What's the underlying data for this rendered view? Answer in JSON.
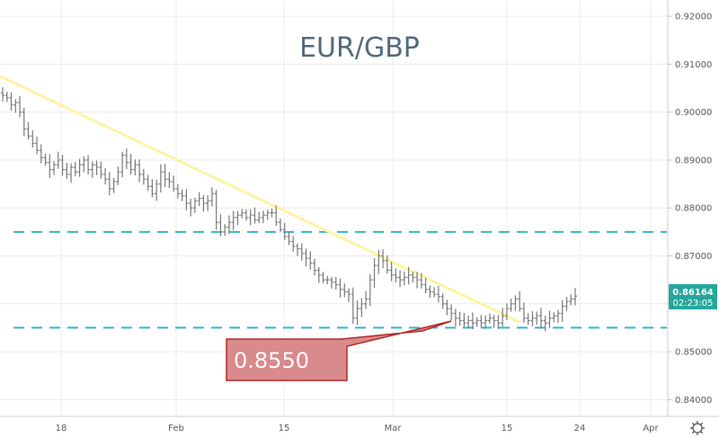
{
  "chart_data": {
    "type": "ohlc",
    "title": "EUR/GBP",
    "price_axis_position": "right",
    "ylim": [
      0.8365,
      0.9234
    ],
    "y_ticks": [
      "0.92000",
      "0.91000",
      "0.90000",
      "0.89000",
      "0.88000",
      "0.87000",
      "0.86000",
      "0.85000",
      "0.84000"
    ],
    "x_ticks": [
      "18",
      "Feb",
      "15",
      "Mar",
      "15",
      "24",
      "Apr"
    ],
    "last_price": "0.86164",
    "countdown": "02:23:05",
    "colors": {
      "bars": "#7a7a7a",
      "grid": "#ececec",
      "trendline": "#fff3a6",
      "support_resistance": "#35b6c9",
      "callout_fill": "#d98a8a",
      "callout_border": "#b52a2a",
      "badge": "#26a69a",
      "title": "#546a7b"
    },
    "horizontal_levels": [
      0.875,
      0.855
    ],
    "trendline": {
      "start": 0.9075,
      "end": 0.8562
    },
    "annotation": {
      "text": "0.8550",
      "points_to_price": 0.855
    },
    "close_series": [
      0.9035,
      0.903,
      0.9015,
      0.902,
      0.9,
      0.8965,
      0.895,
      0.8935,
      0.892,
      0.8905,
      0.8895,
      0.888,
      0.889,
      0.89,
      0.888,
      0.887,
      0.8885,
      0.8875,
      0.889,
      0.89,
      0.888,
      0.889,
      0.8885,
      0.887,
      0.886,
      0.884,
      0.8855,
      0.8875,
      0.891,
      0.8895,
      0.888,
      0.889,
      0.887,
      0.886,
      0.8845,
      0.883,
      0.885,
      0.8875,
      0.886,
      0.8855,
      0.884,
      0.883,
      0.8825,
      0.881,
      0.88,
      0.8815,
      0.882,
      0.881,
      0.8815,
      0.883,
      0.877,
      0.875,
      0.876,
      0.877,
      0.878,
      0.8785,
      0.879,
      0.878,
      0.8785,
      0.8775,
      0.878,
      0.8785,
      0.879,
      0.879,
      0.877,
      0.8755,
      0.874,
      0.873,
      0.872,
      0.8715,
      0.8705,
      0.8695,
      0.8685,
      0.867,
      0.866,
      0.865,
      0.865,
      0.8645,
      0.864,
      0.863,
      0.8625,
      0.862,
      0.857,
      0.859,
      0.86,
      0.861,
      0.865,
      0.868,
      0.87,
      0.869,
      0.867,
      0.866,
      0.8655,
      0.865,
      0.8655,
      0.866,
      0.8655,
      0.865,
      0.864,
      0.863,
      0.8625,
      0.862,
      0.8615,
      0.86,
      0.859,
      0.858,
      0.857,
      0.8565,
      0.856,
      0.8565,
      0.856,
      0.8565,
      0.856,
      0.8565,
      0.857,
      0.8565,
      0.856,
      0.8575,
      0.859,
      0.86,
      0.861,
      0.859,
      0.857,
      0.8565,
      0.857,
      0.8575,
      0.8565,
      0.856,
      0.857,
      0.8575,
      0.858,
      0.8595,
      0.8605,
      0.861,
      0.8616
    ]
  }
}
